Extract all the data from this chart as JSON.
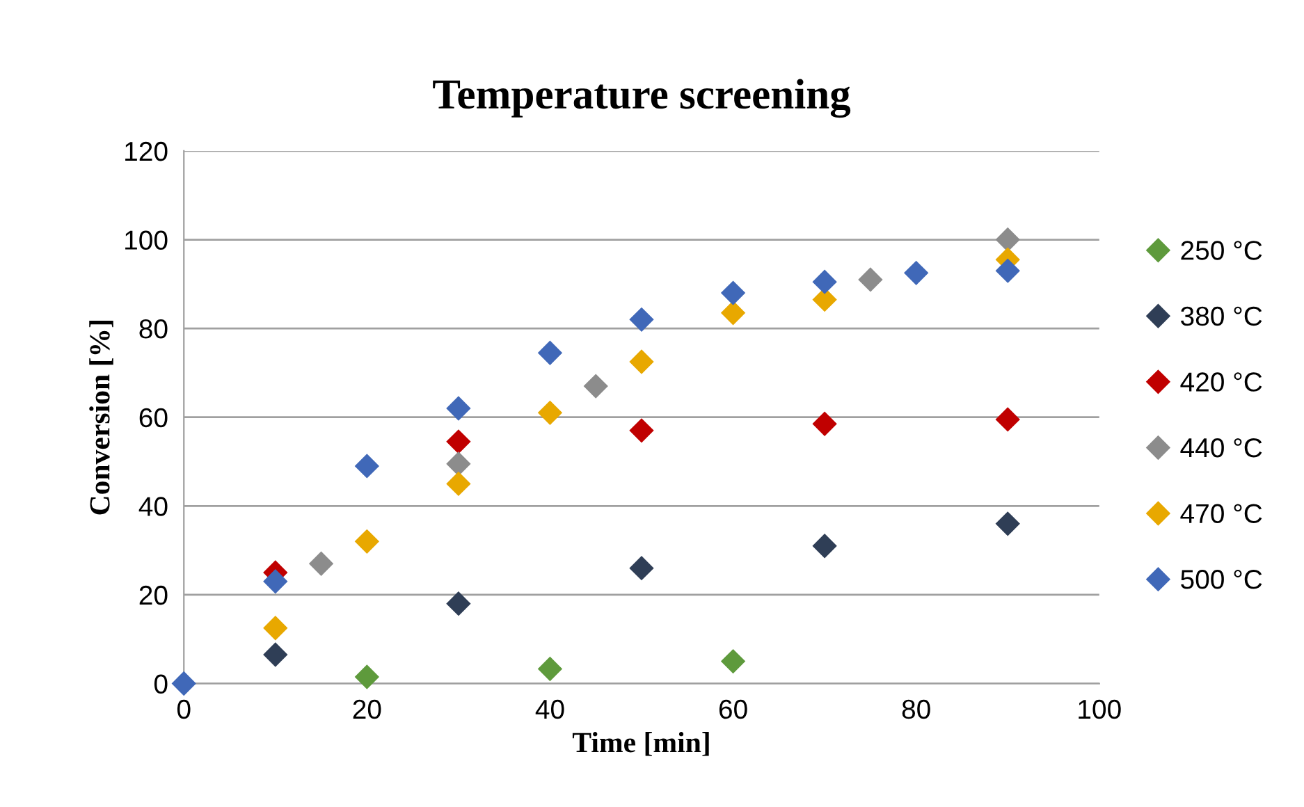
{
  "chart_data": {
    "type": "scatter",
    "title": "Temperature screening",
    "xlabel": "Time [min]",
    "ylabel": "Conversion [%]",
    "xlim": [
      0,
      100
    ],
    "xticks": [
      0,
      20,
      40,
      60,
      80,
      100
    ],
    "ylim": [
      0,
      120
    ],
    "yticks": [
      0,
      20,
      40,
      60,
      80,
      100,
      120
    ],
    "grid": "y",
    "legend": "right",
    "marker": "diamond",
    "series": [
      {
        "name": "250 °C",
        "color": "#5e9a3c",
        "x": [
          20,
          40,
          60
        ],
        "values": [
          1.5,
          3.3,
          5
        ]
      },
      {
        "name": "380 °C",
        "color": "#2f3e56",
        "x": [
          10,
          30,
          50,
          70,
          90
        ],
        "values": [
          6.5,
          18,
          26,
          31,
          36
        ]
      },
      {
        "name": "420 °C",
        "color": "#c00000",
        "x": [
          10,
          30,
          50,
          70,
          90
        ],
        "values": [
          25,
          54.5,
          57,
          58.5,
          59.5
        ]
      },
      {
        "name": "440 °C",
        "color": "#8c8c8c",
        "x": [
          15,
          30,
          45,
          75,
          90
        ],
        "values": [
          27,
          49.5,
          67,
          91,
          100
        ]
      },
      {
        "name": "470 °C",
        "color": "#e8a800",
        "x": [
          10,
          20,
          30,
          40,
          50,
          60,
          70,
          90
        ],
        "values": [
          12.5,
          32,
          45,
          61,
          72.5,
          83.5,
          86.5,
          95.5
        ]
      },
      {
        "name": "500 °C",
        "color": "#4068b8",
        "x": [
          0,
          10,
          20,
          30,
          40,
          50,
          60,
          70,
          80,
          90
        ],
        "values": [
          0,
          23,
          49,
          62,
          74.5,
          82,
          88,
          90.5,
          92.5,
          93
        ]
      }
    ]
  }
}
